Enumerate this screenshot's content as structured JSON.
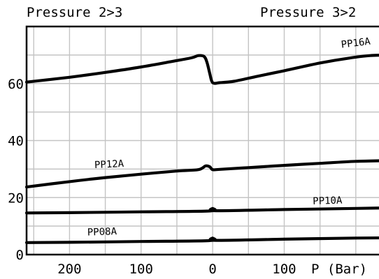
{
  "header": {
    "left": "Pressure 2>3",
    "right": "Pressure 3>2"
  },
  "chart_data": {
    "type": "line",
    "title": "",
    "xlabel": "P (Bar)",
    "ylabel": "",
    "x_ticks": [
      {
        "value": -200,
        "label": "200"
      },
      {
        "value": -100,
        "label": "100"
      },
      {
        "value": 0,
        "label": "0"
      },
      {
        "value": 100,
        "label": "100"
      }
    ],
    "y_ticks": [
      0,
      20,
      40,
      60
    ],
    "xlim": [
      -260,
      250
    ],
    "ylim": [
      0,
      80
    ],
    "grid": true,
    "series": [
      {
        "name": "PP16A",
        "points": [
          [
            -260,
            60.5
          ],
          [
            -200,
            62.2
          ],
          [
            -150,
            63.9
          ],
          [
            -100,
            65.8
          ],
          [
            -60,
            67.6
          ],
          [
            -30,
            69.0
          ],
          [
            -20,
            69.8
          ],
          [
            -12,
            69.5
          ],
          [
            -8,
            67.5
          ],
          [
            -4,
            63.5
          ],
          [
            0,
            60.3
          ],
          [
            10,
            60.3
          ],
          [
            30,
            60.8
          ],
          [
            60,
            62.4
          ],
          [
            100,
            64.5
          ],
          [
            150,
            67.2
          ],
          [
            190,
            68.9
          ],
          [
            220,
            69.8
          ],
          [
            250,
            70.0
          ]
        ]
      },
      {
        "name": "PP12A",
        "points": [
          [
            -260,
            23.7
          ],
          [
            -200,
            25.6
          ],
          [
            -150,
            27.0
          ],
          [
            -100,
            28.2
          ],
          [
            -50,
            29.3
          ],
          [
            -20,
            29.8
          ],
          [
            -10,
            31.1
          ],
          [
            -4,
            30.8
          ],
          [
            0,
            29.8
          ],
          [
            10,
            29.9
          ],
          [
            50,
            30.5
          ],
          [
            100,
            31.3
          ],
          [
            150,
            32.0
          ],
          [
            200,
            32.7
          ],
          [
            250,
            33.0
          ]
        ]
      },
      {
        "name": "PP10A",
        "points": [
          [
            -260,
            14.6
          ],
          [
            -200,
            14.7
          ],
          [
            -100,
            15.0
          ],
          [
            -5,
            15.3
          ],
          [
            0,
            16.2
          ],
          [
            5,
            15.4
          ],
          [
            100,
            15.8
          ],
          [
            200,
            16.2
          ],
          [
            250,
            16.4
          ]
        ]
      },
      {
        "name": "PP08A",
        "points": [
          [
            -260,
            4.2
          ],
          [
            -200,
            4.3
          ],
          [
            -100,
            4.6
          ],
          [
            -5,
            4.9
          ],
          [
            0,
            5.8
          ],
          [
            5,
            5.0
          ],
          [
            100,
            5.4
          ],
          [
            200,
            5.8
          ],
          [
            250,
            5.9
          ]
        ]
      }
    ]
  }
}
